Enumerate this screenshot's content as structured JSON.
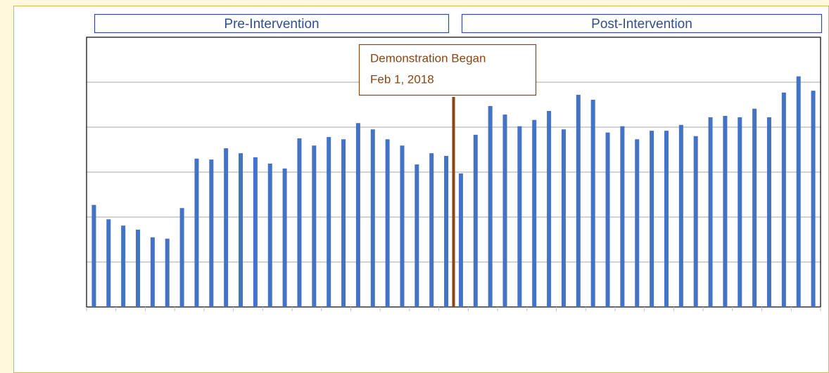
{
  "chart_data": {
    "type": "bar",
    "headers": [
      "Pre-Intervention",
      "Post-Intervention"
    ],
    "annotation": [
      "Demonstration Began",
      "Feb 1, 2018"
    ],
    "annotation_color": "#8b4513",
    "categories": [
      null,
      null,
      null,
      null,
      null,
      null,
      null,
      null,
      null,
      null,
      null,
      null,
      null,
      null,
      null,
      null,
      null,
      null,
      null,
      null,
      null,
      null,
      null,
      null,
      null,
      null,
      null,
      null,
      null,
      null,
      null,
      null,
      null,
      null,
      null,
      null,
      null,
      null,
      null,
      null,
      null,
      null,
      null,
      null,
      null,
      null,
      null,
      null,
      null,
      null
    ],
    "values": [
      2.27,
      1.95,
      1.81,
      1.72,
      1.55,
      1.52,
      2.2,
      3.3,
      3.28,
      3.53,
      3.42,
      3.33,
      3.19,
      3.08,
      3.75,
      3.59,
      3.78,
      3.73,
      4.09,
      3.95,
      3.73,
      3.59,
      3.17,
      3.42,
      3.36,
      2.97,
      3.83,
      4.47,
      4.28,
      4.02,
      4.16,
      4.36,
      3.95,
      4.72,
      4.61,
      3.88,
      4.02,
      3.73,
      3.92,
      3.92,
      4.05,
      3.8,
      4.22,
      4.25,
      4.22,
      4.41,
      4.22,
      4.77,
      5.13,
      4.81
    ],
    "color": "#4472c4",
    "ylim": [
      0,
      6
    ],
    "yticks": [
      0,
      1,
      2,
      3,
      4,
      5,
      6
    ],
    "grid": true
  }
}
